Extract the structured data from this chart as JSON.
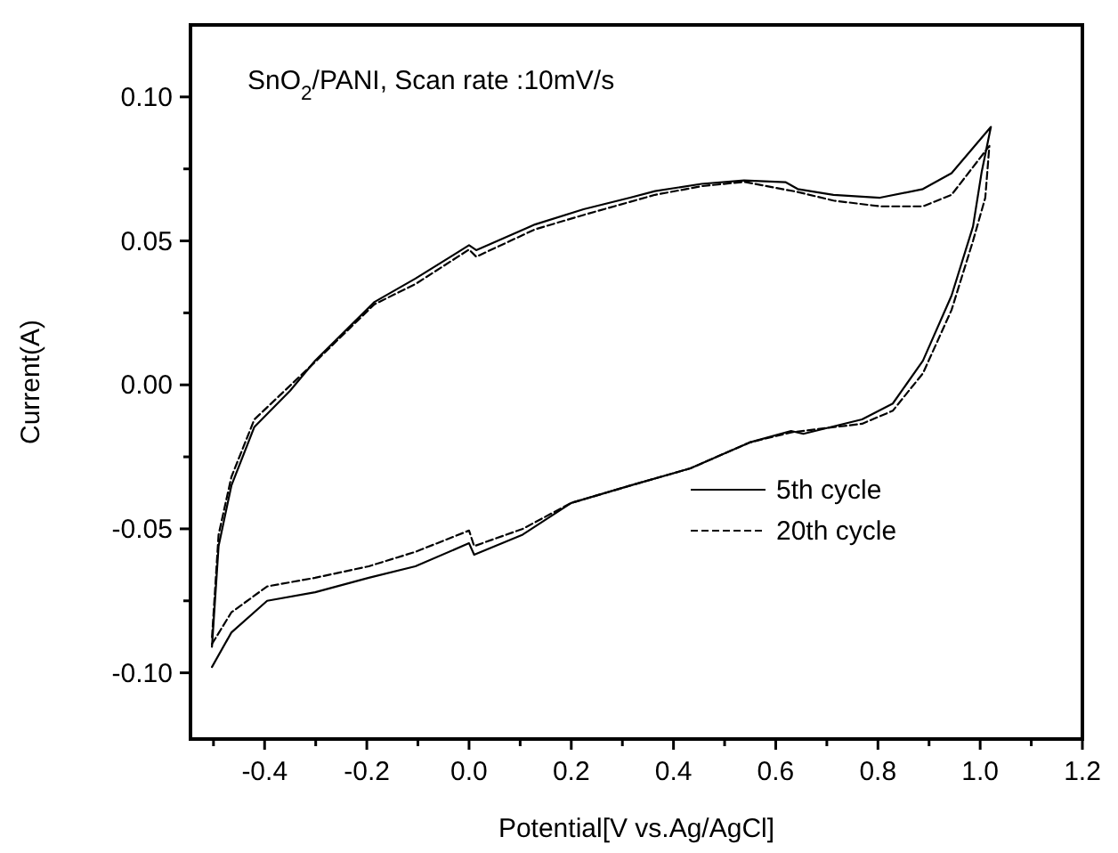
{
  "chart_data": {
    "type": "line",
    "xlabel": "Potential[V vs.Ag/AgCl]",
    "ylabel": "Current(A)",
    "annotations": [
      "SnO$_{2}$/PANI, Scan rate :10mV/s"
    ],
    "xlim": [
      -0.545,
      1.2
    ],
    "ylim": [
      -0.123,
      0.125
    ],
    "xticks": [
      {
        "value": -0.5,
        "label": null
      },
      -0.4,
      {
        "value": -0.3,
        "label": null
      },
      -0.2,
      {
        "value": -0.1,
        "label": null
      },
      {
        "value": 0,
        "label": "0.0"
      },
      {
        "value": 0.1,
        "label": null
      },
      0.2,
      {
        "value": 0.3,
        "label": null
      },
      0.4,
      {
        "value": 0.5,
        "label": null
      },
      0.6,
      {
        "value": 0.7,
        "label": null
      },
      0.8,
      {
        "value": 0.9,
        "label": null
      },
      {
        "value": 1,
        "label": "1.0"
      },
      {
        "value": 1.1,
        "label": null
      },
      1.2
    ],
    "yticks": [
      {
        "value": -0.1,
        "label": "-0.10"
      },
      {
        "value": -0.075,
        "label": null
      },
      -0.05,
      {
        "value": -0.025,
        "label": null
      },
      {
        "value": 0,
        "label": "0.00"
      },
      {
        "value": 0.025,
        "label": null
      },
      0.05,
      {
        "value": 0.075,
        "label": null
      },
      {
        "value": 0.1,
        "label": "0.10"
      }
    ],
    "legend": "bottom right",
    "grid": false,
    "marker": "none",
    "series": [
      {
        "name": "5th cycle",
        "color": "#000000",
        "line_style": "solid",
        "x": [
          -0.503,
          -0.465,
          -0.395,
          -0.301,
          -0.196,
          -0.105,
          0,
          0.01,
          0.105,
          0.2,
          0.315,
          0.433,
          0.549,
          0.63,
          0.654,
          0.769,
          0.829,
          0.888,
          0.944,
          0.986,
          1.003,
          1.021,
          0.944,
          0.888,
          0.804,
          0.713,
          0.643,
          0.619,
          0.538,
          0.455,
          0.364,
          0.315,
          0.224,
          0.129,
          0.014,
          0,
          -0.105,
          -0.185,
          -0.301,
          -0.35,
          -0.42,
          -0.465,
          -0.49,
          -0.503
        ],
        "values": [
          -0.098,
          -0.086,
          -0.075,
          -0.072,
          -0.067,
          -0.063,
          -0.055,
          -0.059,
          -0.052,
          -0.041,
          -0.035,
          -0.029,
          -0.02,
          -0.016,
          -0.017,
          -0.012,
          -0.0065,
          0.0084,
          0.031,
          0.055,
          0.074,
          0.0896,
          0.0735,
          0.068,
          0.065,
          0.066,
          0.068,
          0.0704,
          0.071,
          0.0698,
          0.0673,
          0.065,
          0.061,
          0.0557,
          0.0468,
          0.0485,
          0.0369,
          0.0288,
          0.0084,
          -0.002,
          -0.0146,
          -0.035,
          -0.056,
          -0.091
        ]
      },
      {
        "name": "20th cycle",
        "color": "#000000",
        "line_style": "dashed",
        "x": [
          -0.503,
          -0.465,
          -0.395,
          -0.301,
          -0.196,
          -0.105,
          0,
          0.01,
          0.105,
          0.2,
          0.315,
          0.433,
          0.549,
          0.63,
          0.769,
          0.829,
          0.888,
          0.944,
          0.986,
          1.01,
          1.018,
          0.944,
          0.888,
          0.804,
          0.713,
          0.643,
          0.538,
          0.455,
          0.364,
          0.224,
          0.129,
          0.014,
          0,
          -0.105,
          -0.185,
          -0.301,
          -0.42,
          -0.465,
          -0.49,
          -0.503
        ],
        "values": [
          -0.09,
          -0.079,
          -0.07,
          -0.067,
          -0.063,
          -0.058,
          -0.0506,
          -0.056,
          -0.05,
          -0.041,
          -0.035,
          -0.029,
          -0.02,
          -0.0165,
          -0.0135,
          -0.009,
          0.004,
          0.026,
          0.05,
          0.065,
          0.083,
          0.066,
          0.062,
          0.062,
          0.064,
          0.067,
          0.0705,
          0.069,
          0.066,
          0.059,
          0.054,
          0.0445,
          0.047,
          0.035,
          0.028,
          0.008,
          -0.012,
          -0.032,
          -0.052,
          -0.088
        ]
      }
    ]
  }
}
